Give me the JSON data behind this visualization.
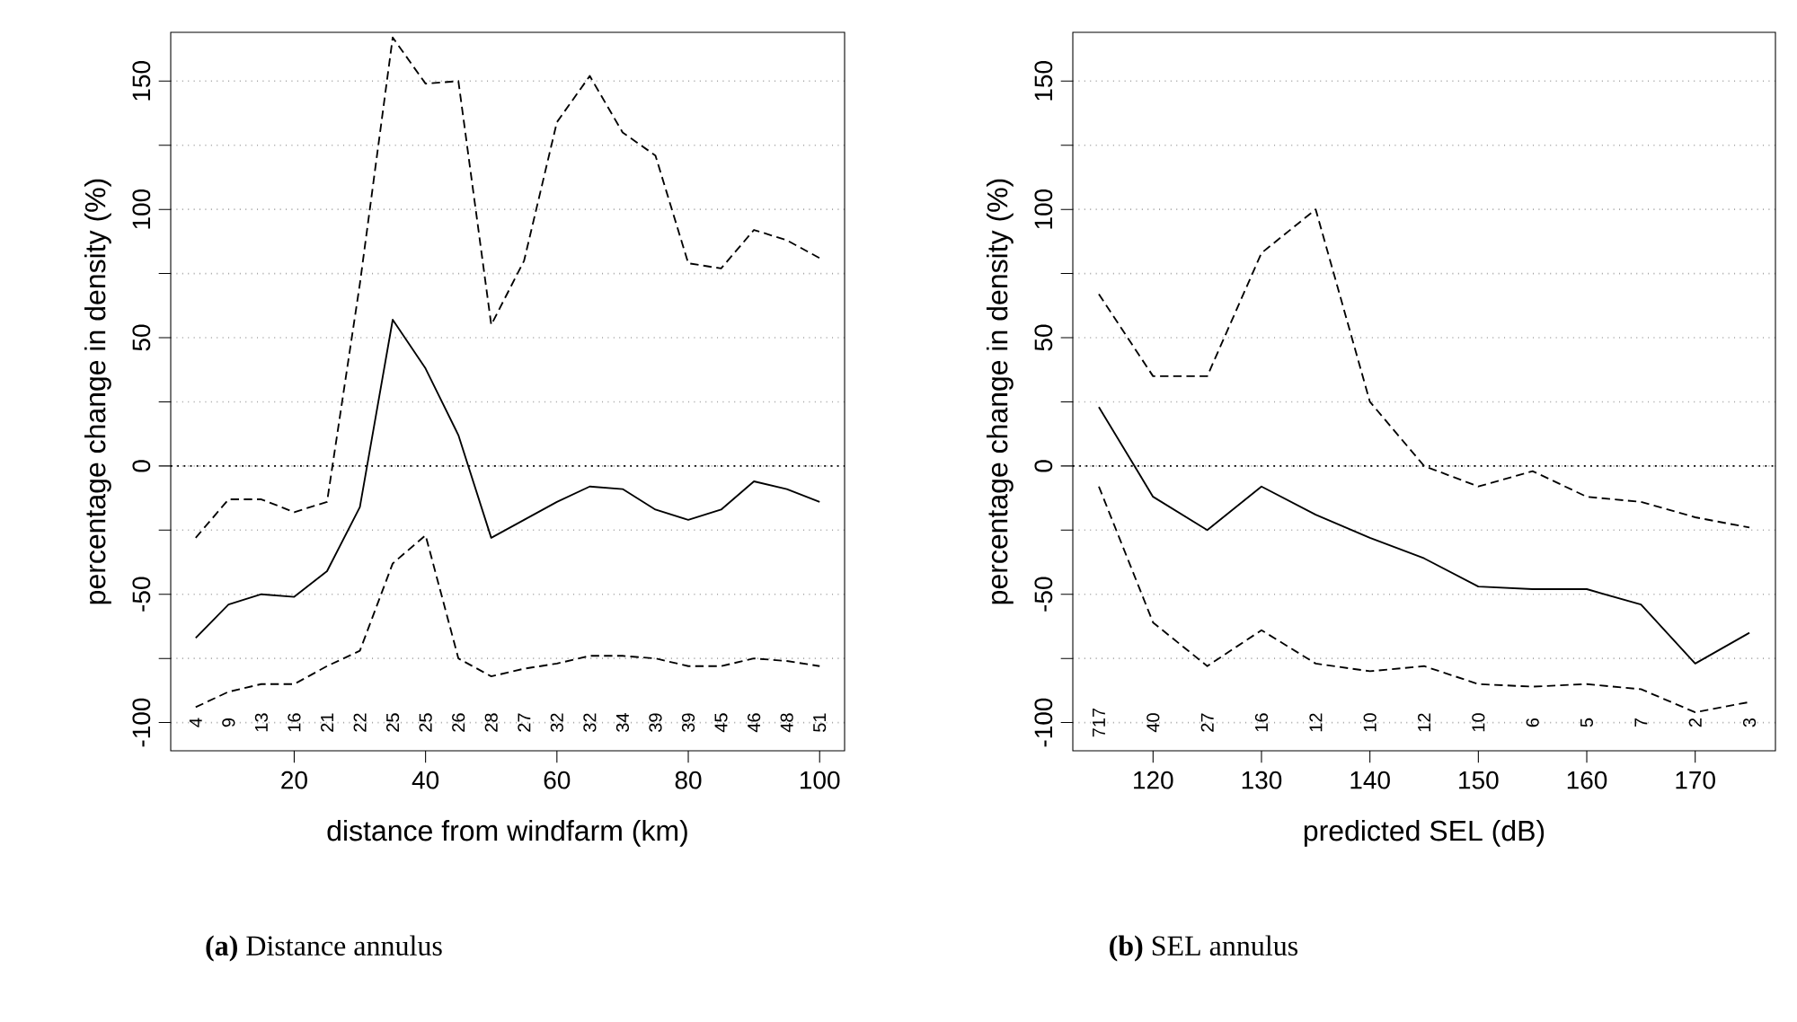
{
  "chart_data": [
    {
      "type": "line",
      "title": "**(a)** Distance annulus",
      "xlabel": "distance from windfarm (km)",
      "ylabel": "percentage change in density (%)",
      "x": [
        5,
        10,
        15,
        20,
        25,
        30,
        35,
        40,
        45,
        50,
        55,
        60,
        65,
        70,
        75,
        80,
        85,
        90,
        95,
        100
      ],
      "series": [
        {
          "color": "#000000",
          "line_style": "dashed",
          "values": [
            -94,
            -88,
            -85,
            -85,
            -78,
            -72,
            -38,
            -27,
            -75,
            -82,
            -79,
            -77,
            -74,
            -74,
            -75,
            -78,
            -78,
            -75,
            -76,
            -78
          ]
        },
        {
          "color": "#000000",
          "line_style": "solid",
          "values": [
            -67,
            -54,
            -50,
            -51,
            -41,
            -16,
            57,
            38,
            12,
            -28,
            -21,
            -14,
            -8,
            -9,
            -17,
            -21,
            -17,
            -6,
            -9,
            -14
          ]
        },
        {
          "color": "#000000",
          "line_style": "dashed",
          "values": [
            -28,
            -13,
            -13,
            -18,
            -14,
            71,
            167,
            149,
            150,
            55,
            80,
            134,
            152,
            130,
            121,
            79,
            77,
            92,
            88,
            81
          ]
        }
      ],
      "xlim": [
        1.2,
        103.8
      ],
      "ylim": [
        -111,
        169
      ],
      "xticks": [
        20,
        40,
        60,
        80,
        100
      ],
      "yticks": [
        -100,
        {
          "value": -75,
          "label": null
        },
        -50,
        {
          "value": -25,
          "label": null
        },
        0,
        {
          "value": 25,
          "label": null
        },
        50,
        {
          "value": 75,
          "label": null
        },
        100,
        {
          "value": 125,
          "label": null
        },
        150
      ],
      "grid": "y",
      "ref_lines": [
        {
          "axis": "y",
          "value": 0,
          "color": "#000000",
          "line_style": "dotted"
        }
      ],
      "annotations": [
        "4",
        "9",
        "13",
        "16",
        "21",
        "22",
        "25",
        "25",
        "26",
        "28",
        "27",
        "32",
        "32",
        "34",
        "39",
        "39",
        "45",
        "46",
        "48",
        "51"
      ]
    },
    {
      "type": "line",
      "title": "**(b)** SEL annulus",
      "xlabel": "predicted SEL (dB)",
      "ylabel": "percentage change in density (%)",
      "x": [
        115,
        120,
        125,
        130,
        135,
        140,
        145,
        150,
        155,
        160,
        165,
        170,
        175
      ],
      "series": [
        {
          "color": "#000000",
          "line_style": "dashed",
          "values": [
            -8,
            -61,
            -78,
            -64,
            -77,
            -80,
            -78,
            -85,
            -86,
            -85,
            -87,
            -96,
            -92
          ]
        },
        {
          "color": "#000000",
          "line_style": "solid",
          "values": [
            23,
            -12,
            -25,
            -8,
            -19,
            -28,
            -36,
            -47,
            -48,
            -48,
            -54,
            -77,
            -65
          ]
        },
        {
          "color": "#000000",
          "line_style": "dashed",
          "values": [
            67,
            35,
            35,
            83,
            100,
            25,
            0,
            -8,
            -2,
            -12,
            -14,
            -20,
            -24
          ]
        }
      ],
      "xlim": [
        112.6,
        177.4
      ],
      "ylim": [
        -111,
        169
      ],
      "xticks": [
        120,
        130,
        140,
        150,
        160,
        170
      ],
      "yticks": [
        -100,
        {
          "value": -75,
          "label": null
        },
        -50,
        {
          "value": -25,
          "label": null
        },
        0,
        {
          "value": 25,
          "label": null
        },
        50,
        {
          "value": 75,
          "label": null
        },
        100,
        {
          "value": 125,
          "label": null
        },
        150
      ],
      "grid": "y",
      "ref_lines": [
        {
          "axis": "y",
          "value": 0,
          "color": "#000000",
          "line_style": "dotted"
        }
      ],
      "annotations": [
        "717",
        "40",
        "27",
        "16",
        "12",
        "10",
        "12",
        "10",
        "6",
        "5",
        "7",
        "2",
        "3"
      ]
    }
  ]
}
